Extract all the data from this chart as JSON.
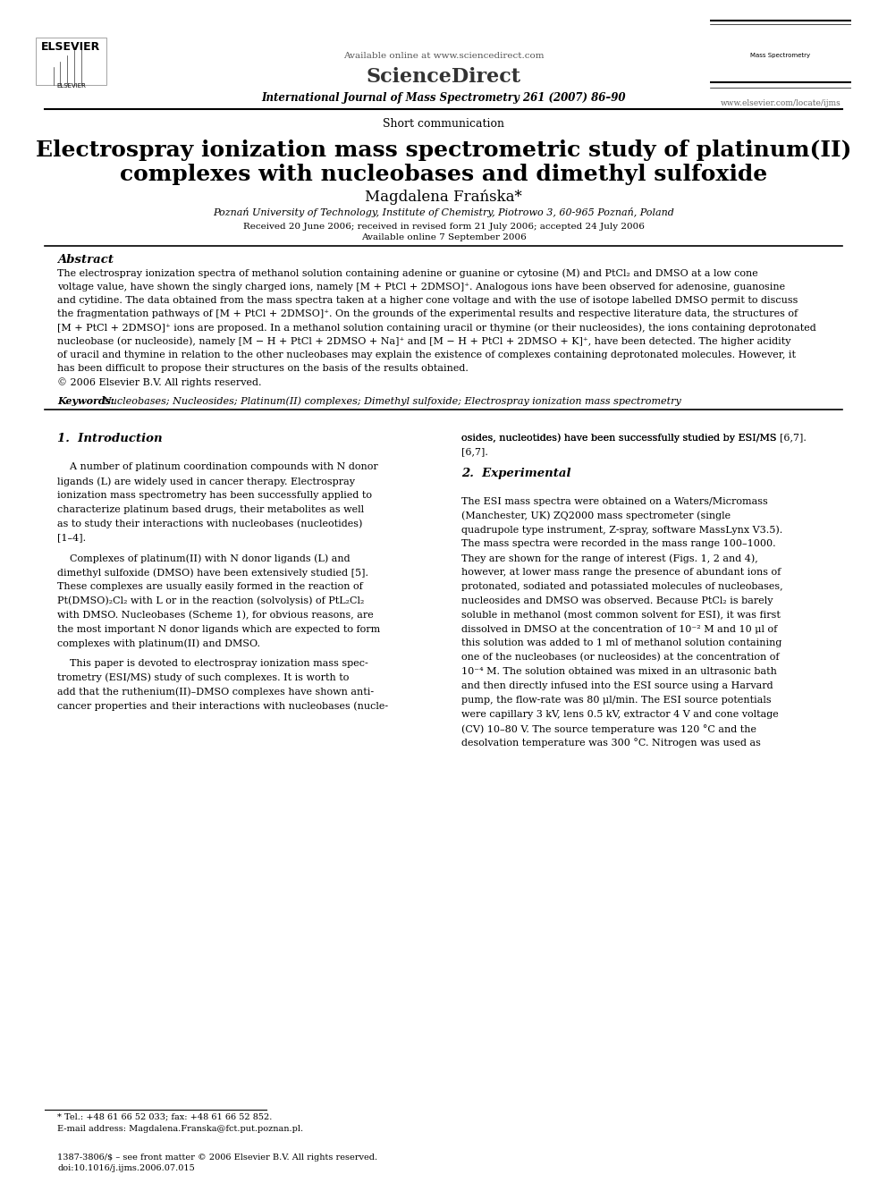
{
  "background_color": "#ffffff",
  "page_width": 9.92,
  "page_height": 13.23,
  "header": {
    "available_online_text": "Available online at www.sciencedirect.com",
    "journal_name": "International Journal of Mass Spectrometry 261 (2007) 86–90",
    "journal_url": "www.elsevier.com/locate/ijms",
    "sciencedirect_text": "ScienceDirect"
  },
  "article_type": "Short communication",
  "title_line1": "Electrospray ionization mass spectrometric study of platinum(II)",
  "title_line2": "complexes with nucleobases and dimethyl sulfoxide",
  "author": "Magdalena Frańska",
  "author_asterisk": "*",
  "affiliation": "Poznań University of Technology, Institute of Chemistry, Piotrowo 3, 60-965 Poznań, Poland",
  "received": "Received 20 June 2006; received in revised form 21 July 2006; accepted 24 July 2006",
  "available_online": "Available online 7 September 2006",
  "abstract_title": "Abstract",
  "abstract_text": "The electrospray ionization spectra of methanol solution containing adenine or guanine or cytosine (M) and PtCl₂ and DMSO at a low cone voltage value, have shown the singly charged ions, namely [M + PtCl + 2DMSO]⁺. Analogous ions have been observed for adenosine, guanosine and cytidine. The data obtained from the mass spectra taken at a higher cone voltage and with the use of isotope labelled DMSO permit to discuss the fragmentation pathways of [M + PtCl + 2DMSO]⁺. On the grounds of the experimental results and respective literature data, the structures of [M + PtCl + 2DMSO]⁺ ions are proposed. In a methanol solution containing uracil or thymine (or their nucleosides), the ions containing deprotonated nucleobase (or nucleoside), namely [M − H + PtCl + 2DMSO + Na]⁺ and [M − H + PtCl + 2DMSO + K]⁺, have been detected. The higher acidity of uracil and thymine in relation to the other nucleobases may explain the existence of complexes containing deprotonated molecules. However, it has been difficult to propose their structures on the basis of the results obtained.",
  "copyright": "© 2006 Elsevier B.V. All rights reserved.",
  "keywords_label": "Keywords:",
  "keywords_text": "Nucleobases; Nucleosides; Platinum(II) complexes; Dimethyl sulfoxide; Electrospray ionization mass spectrometry",
  "section1_title": "1.  Introduction",
  "section1_col1_para1": "A number of platinum coordination compounds with N donor ligands (L) are widely used in cancer therapy. Electrospray ionization mass spectrometry has been successfully applied to characterize platinum based drugs, their metabolites as well as to study their interactions with nucleobases (nucleotides) [1–4].",
  "section1_col1_para2": "Complexes of platinum(II) with N donor ligands (L) and dimethyl sulfoxide (DMSO) have been extensively studied [5]. These complexes are usually easily formed in the reaction of Pt(DMSO)₂Cl₂ with L or in the reaction (solvolysis) of PtL₂Cl₂ with DMSO. Nucleobases (Scheme 1), for obvious reasons, are the most important N donor ligands which are expected to form complexes with platinum(II) and DMSO.",
  "section1_col1_para3": "This paper is devoted to electrospray ionization mass spectrometry (ESI/MS) study of such complexes. It is worth to add that the ruthenium(II)–DMSO complexes have shown anti-cancer properties and their interactions with nucleobases (nucle-",
  "section1_col2_text1": "osides, nucleotides) have been successfully studied by ESI/MS [6,7].",
  "section2_title": "2.  Experimental",
  "section2_col2_para1": "The ESI mass spectra were obtained on a Waters/Micromass (Manchester, UK) ZQ2000 mass spectrometer (single quadrupole type instrument, Z-spray, software MassLynx V3.5). The mass spectra were recorded in the mass range 100–1000. They are shown for the range of interest (Figs. 1, 2 and 4), however, at lower mass range the presence of abundant ions of protonated, sodiated and potassiated molecules of nucleobases, nucleosides and DMSO was observed. Because PtCl₂ is barely soluble in methanol (most common solvent for ESI), it was first dissolved in DMSO at the concentration of 10⁻² M and 10 μl of this solution was added to 1 ml of methanol solution containing one of the nucleobases (or nucleosides) at the concentration of 10⁻⁴ M. The solution obtained was mixed in an ultrasonic bath and then directly infused into the ESI source using a Harvard pump, the flow-rate was 80 μl/min. The ESI source potentials were capillary 3 kV, lens 0.5 kV, extractor 4 V and cone voltage (CV) 10–80 V. The source temperature was 120 °C and the desolvation temperature was 300 °C. Nitrogen was used as",
  "footer_text1": "1387-3806/$ – see front matter © 2006 Elsevier B.V. All rights reserved.",
  "footer_text2": "doi:10.1016/j.ijms.2006.07.015",
  "footnote_tel": "* Tel.: +48 61 66 52 033; fax: +48 61 66 52 852.",
  "footnote_email": "E-mail address: Magdalena.Franska@fct.put.poznan.pl."
}
